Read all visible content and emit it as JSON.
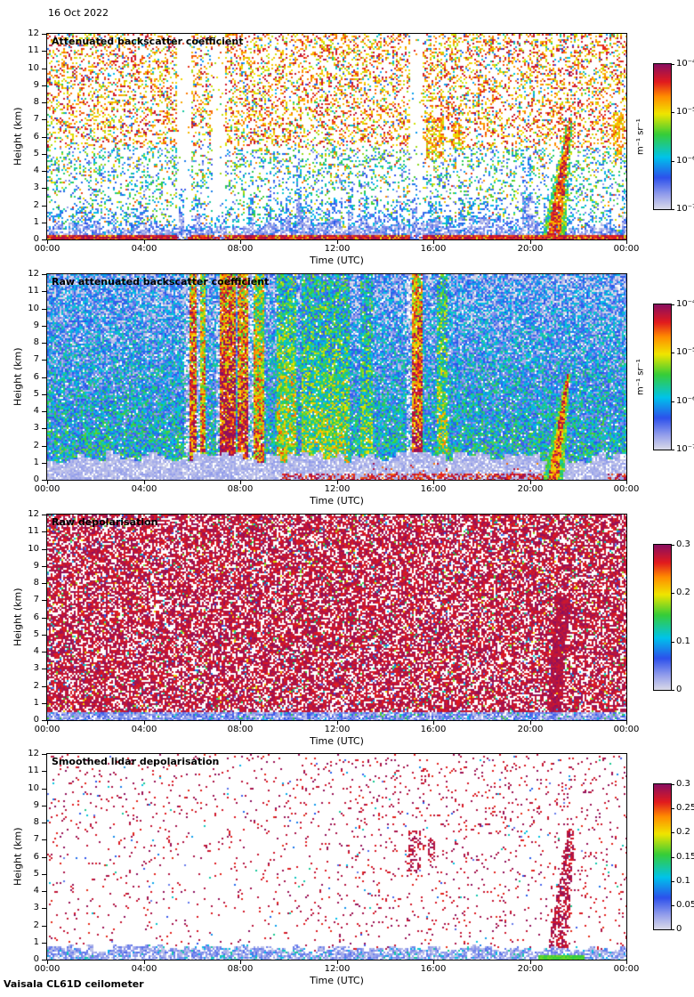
{
  "page": {
    "date_label": "16 Oct 2022",
    "footer_label": "Vaisala CL61D ceilometer",
    "background": "#ffffff",
    "frame_color": "#000000"
  },
  "colormap": {
    "stops": [
      [
        0,
        "#dcdce8"
      ],
      [
        0.1,
        "#96a0eb"
      ],
      [
        0.22,
        "#2d50eb"
      ],
      [
        0.36,
        "#00c3eb"
      ],
      [
        0.52,
        "#37cd37"
      ],
      [
        0.66,
        "#f0e600"
      ],
      [
        0.78,
        "#ff8c00"
      ],
      [
        0.88,
        "#e11a1e"
      ],
      [
        1,
        "#8c0f5f"
      ]
    ]
  },
  "chart_data": [
    {
      "type": "heatmap",
      "title": "Attenuated backscatter coefficient",
      "xlabel": "Time (UTC)",
      "ylabel": "Height (km)",
      "x_ticks": [
        "00:00",
        "04:00",
        "08:00",
        "12:00",
        "16:00",
        "20:00",
        "00:00"
      ],
      "y_ticks": [
        "0",
        "1",
        "2",
        "3",
        "4",
        "5",
        "6",
        "7",
        "8",
        "9",
        "10",
        "11",
        "12"
      ],
      "xlim_hours": [
        0,
        24
      ],
      "ylim_km": [
        0,
        12
      ],
      "colorbar": {
        "scale": "log",
        "range": [
          "1e-7",
          "1e-4"
        ],
        "ticks": [
          "10⁻⁴",
          "10⁻⁵",
          "10⁻⁶",
          "10⁻⁷"
        ],
        "label": "m⁻¹ sr⁻¹"
      },
      "features": "Mostly white with sparse warm (yellow/orange/red) noise speckle aloft; strong dark-red surface return band below ~0.3 km; grey-blue boundary layer to ~1 km, denser 10:00-20:00; white data gap columns near 05:30, 07:00 and 15:00; yellow cloud patches ~5-7 km near 16:00-17:00; coloured plume rising to ~7 km around 21:00.",
      "render": {
        "style": "backscatter",
        "seed": 101,
        "surface_band": 0.022,
        "gaps": [
          [
            0.222,
            0.246
          ],
          [
            0.284,
            0.306
          ],
          [
            0.624,
            0.648
          ]
        ],
        "patches": [
          [
            0.652,
            0.684,
            0.4,
            0.6
          ],
          [
            0.698,
            0.718,
            0.44,
            0.57
          ],
          [
            0.975,
            0.995,
            0.4,
            0.62
          ]
        ],
        "plume": {
          "x": 0.872,
          "slope": 0.05,
          "top": 0.6
        },
        "bl": {
          "base": 0.035,
          "amp": 0.055,
          "dense_x0": 0.35,
          "dense_x1": 0.88
        }
      }
    },
    {
      "type": "heatmap",
      "title": "Raw attenuated backscatter coefficient",
      "xlabel": "Time (UTC)",
      "ylabel": "Height (km)",
      "x_ticks": [
        "00:00",
        "04:00",
        "08:00",
        "12:00",
        "16:00",
        "20:00",
        "00:00"
      ],
      "y_ticks": [
        "0",
        "1",
        "2",
        "3",
        "4",
        "5",
        "6",
        "7",
        "8",
        "9",
        "10",
        "11",
        "12"
      ],
      "xlim_hours": [
        0,
        24
      ],
      "ylim_km": [
        0,
        12
      ],
      "colorbar": {
        "scale": "log",
        "range": [
          "1e-7",
          "1e-4"
        ],
        "ticks": [
          "10⁻⁴",
          "10⁻⁵",
          "10⁻⁶",
          "10⁻⁷"
        ],
        "label": "m⁻¹ sr⁻¹"
      },
      "features": "Dense blue-green noise at all heights; strong red/orange high-signal columns ~06:00-08:30 and narrower ones near 09:00 and 15:00-15:30; greener enhancement 09:30-12:30; light-grey low-signal zone below ~1.5 km with red surface speckle after ~10:00; coloured plume to ~6 km around 21:00.",
      "render": {
        "style": "raw_backscatter",
        "seed": 202,
        "gray_top": 0.115,
        "columns": [
          [
            0.243,
            0.258,
            0.55
          ],
          [
            0.263,
            0.273,
            0.42
          ],
          [
            0.298,
            0.324,
            0.62
          ],
          [
            0.328,
            0.347,
            0.55
          ],
          [
            0.355,
            0.372,
            0.4
          ],
          [
            0.396,
            0.428,
            0.26
          ],
          [
            0.438,
            0.52,
            0.2
          ],
          [
            0.54,
            0.56,
            0.16
          ],
          [
            0.628,
            0.648,
            0.55
          ],
          [
            0.672,
            0.69,
            0.22
          ]
        ],
        "white_cols": [
          [
            0.235,
            0.243
          ],
          [
            0.258,
            0.263
          ],
          [
            0.289,
            0.298
          ],
          [
            0.347,
            0.355
          ],
          [
            0.62,
            0.628
          ]
        ],
        "plume": {
          "x": 0.872,
          "slope": 0.05,
          "top": 0.52
        }
      }
    },
    {
      "type": "heatmap",
      "title": "Raw depolarisation",
      "xlabel": "Time (UTC)",
      "ylabel": "Height (km)",
      "x_ticks": [
        "00:00",
        "04:00",
        "08:00",
        "12:00",
        "16:00",
        "20:00",
        "00:00"
      ],
      "y_ticks": [
        "0",
        "1",
        "2",
        "3",
        "4",
        "5",
        "6",
        "7",
        "8",
        "9",
        "10",
        "11",
        "12"
      ],
      "xlim_hours": [
        0,
        24
      ],
      "ylim_km": [
        0,
        12
      ],
      "colorbar": {
        "scale": "linear",
        "range": [
          0,
          0.3
        ],
        "ticks": [
          "0.3",
          "0.2",
          "0.1",
          "0"
        ]
      },
      "features": "Saturated magenta/maroon noise (depolarisation at or above 0.3) with white salt-and-pepper speckle at all heights; low-depolarisation grey-blue strip in the lowest ~0.5 km; denser maroon plume column around 21:00.",
      "render": {
        "style": "raw_depol",
        "seed": 303,
        "white_frac": 0.3,
        "accent_frac": 0.05,
        "bottom": 0.042,
        "plume": {
          "x": 0.872,
          "slope": 0.03,
          "top": 0.62
        }
      }
    },
    {
      "type": "heatmap",
      "title": "Smoothed lidar depolarisation",
      "xlabel": "Time (UTC)",
      "ylabel": "Height (km)",
      "x_ticks": [
        "00:00",
        "04:00",
        "08:00",
        "12:00",
        "16:00",
        "20:00",
        "00:00"
      ],
      "y_ticks": [
        "0",
        "1",
        "2",
        "3",
        "4",
        "5",
        "6",
        "7",
        "8",
        "9",
        "10",
        "11",
        "12"
      ],
      "xlim_hours": [
        0,
        24
      ],
      "ylim_km": [
        0,
        12
      ],
      "colorbar": {
        "scale": "linear",
        "range": [
          0,
          0.3
        ],
        "ticks": [
          "0.3",
          "0.25",
          "0.2",
          "0.15",
          "0.1",
          "0.05",
          "0"
        ]
      },
      "features": "Mostly clear (white) with sparse magenta speckle, slightly denser aloft and after 12:00; maroon streaks ~5-7.5 km near 15:00; depolarising plume to ~7 km around 21:00 with bright green band at the surface; light periwinkle low-depolarisation band below ~1 km all day.",
      "render": {
        "style": "smooth_depol",
        "seed": 404,
        "band": 0.06,
        "clusters": [
          [
            0.623,
            0.645,
            0.42,
            0.63
          ],
          [
            0.655,
            0.668,
            0.45,
            0.6
          ]
        ],
        "plume": {
          "x": 0.878,
          "slope": 0.04,
          "top": 0.64
        },
        "green": [
          0.845,
          0.925,
          0.03
        ]
      }
    }
  ]
}
